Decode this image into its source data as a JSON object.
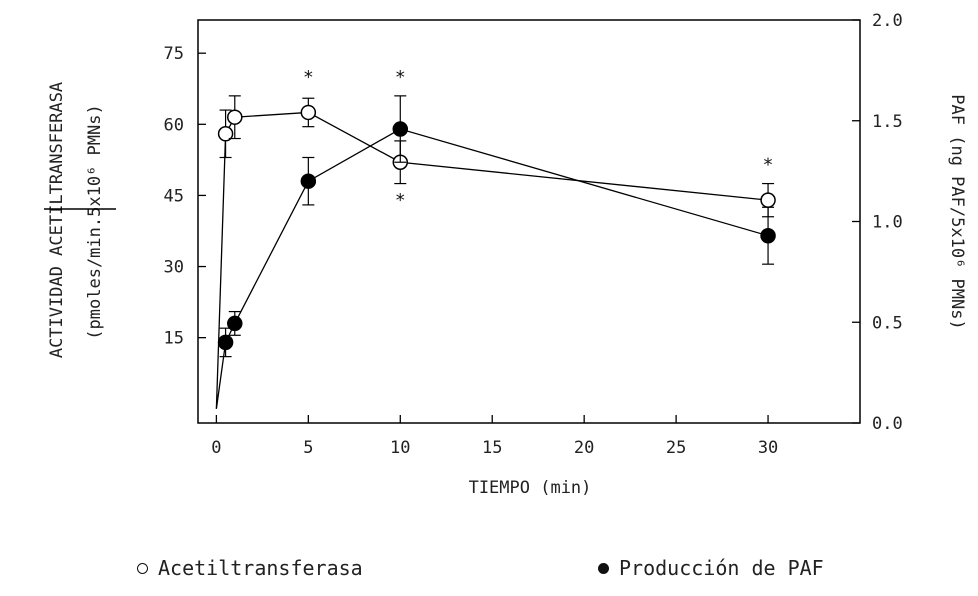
{
  "chart_data": {
    "type": "line",
    "xlabel": "TIEMPO (min)",
    "ylabel_left_line1": "ACTIVIDAD ACETILTRANSFERASA",
    "ylabel_left_line2": "(pmoles/min.5x10⁶ PMNs)",
    "ylabel_right": "PAF (ng PAF/5x10⁶ PMNs)",
    "xlim": [
      -1,
      35
    ],
    "x_ticks": [
      0,
      5,
      10,
      15,
      20,
      25,
      30
    ],
    "ylim_left": [
      -3,
      82
    ],
    "y_ticks_left": [
      15,
      30,
      45,
      60,
      75
    ],
    "ylim_right": [
      0,
      2.0
    ],
    "y_ticks_right": [
      "0.0",
      "0.5",
      "1.0",
      "1.5",
      "2.0"
    ],
    "series": [
      {
        "name": "Acetiltransferasa",
        "marker": "open-circle",
        "axis": "left",
        "x": [
          0,
          0.5,
          1,
          5,
          10,
          30
        ],
        "y": [
          0,
          58,
          61.5,
          62.5,
          52,
          44
        ],
        "err": [
          0,
          5,
          4.5,
          3,
          4.5,
          3.5
        ]
      },
      {
        "name": "Producción de PAF",
        "marker": "filled-circle",
        "axis": "left",
        "x": [
          0,
          0.5,
          1,
          5,
          10,
          30
        ],
        "y": [
          0,
          14,
          18,
          48,
          59,
          36.5
        ],
        "err": [
          0,
          3,
          2.5,
          5,
          7,
          6
        ]
      }
    ],
    "annotations": [
      {
        "text": "*",
        "x": 5,
        "y": 70
      },
      {
        "text": "*",
        "x": 10,
        "y": 70
      },
      {
        "text": "*",
        "x": 10,
        "y": 44
      },
      {
        "text": "*",
        "x": 30,
        "y": 51.5
      }
    ],
    "grid": false,
    "legend_position": "bottom"
  },
  "legend": {
    "item1": "Acetiltransferasa",
    "item2": "Producción de PAF"
  }
}
